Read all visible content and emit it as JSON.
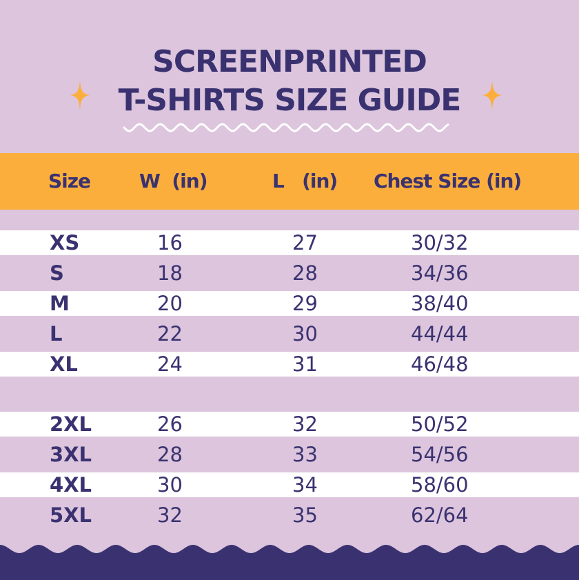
{
  "title": {
    "line1": "SCREENPRINTED",
    "line2": "T-SHIRTS SIZE GUIDE"
  },
  "colors": {
    "background": "#dcc5dd",
    "header": "#fbae3c",
    "text": "#3a3270",
    "sparkle": "#fbae3c",
    "row_alt": "#ffffff"
  },
  "table": {
    "headers": {
      "size": "Size",
      "width": "W  (in)",
      "length": "L   (in)",
      "chest": "Chest Size (in)"
    },
    "rows": [
      {
        "size": "XS",
        "w": "16",
        "l": "27",
        "chest": "30/32"
      },
      {
        "size": "S",
        "w": "18",
        "l": "28",
        "chest": "34/36"
      },
      {
        "size": "M",
        "w": "20",
        "l": "29",
        "chest": "38/40"
      },
      {
        "size": "L",
        "w": "22",
        "l": "30",
        "chest": "44/44"
      },
      {
        "size": "XL",
        "w": "24",
        "l": "31",
        "chest": "46/48"
      },
      {
        "size": "2XL",
        "w": "26",
        "l": "32",
        "chest": "50/52"
      },
      {
        "size": "3XL",
        "w": "28",
        "l": "33",
        "chest": "54/56"
      },
      {
        "size": "4XL",
        "w": "30",
        "l": "34",
        "chest": "58/60"
      },
      {
        "size": "5XL",
        "w": "32",
        "l": "35",
        "chest": "62/64"
      }
    ]
  }
}
